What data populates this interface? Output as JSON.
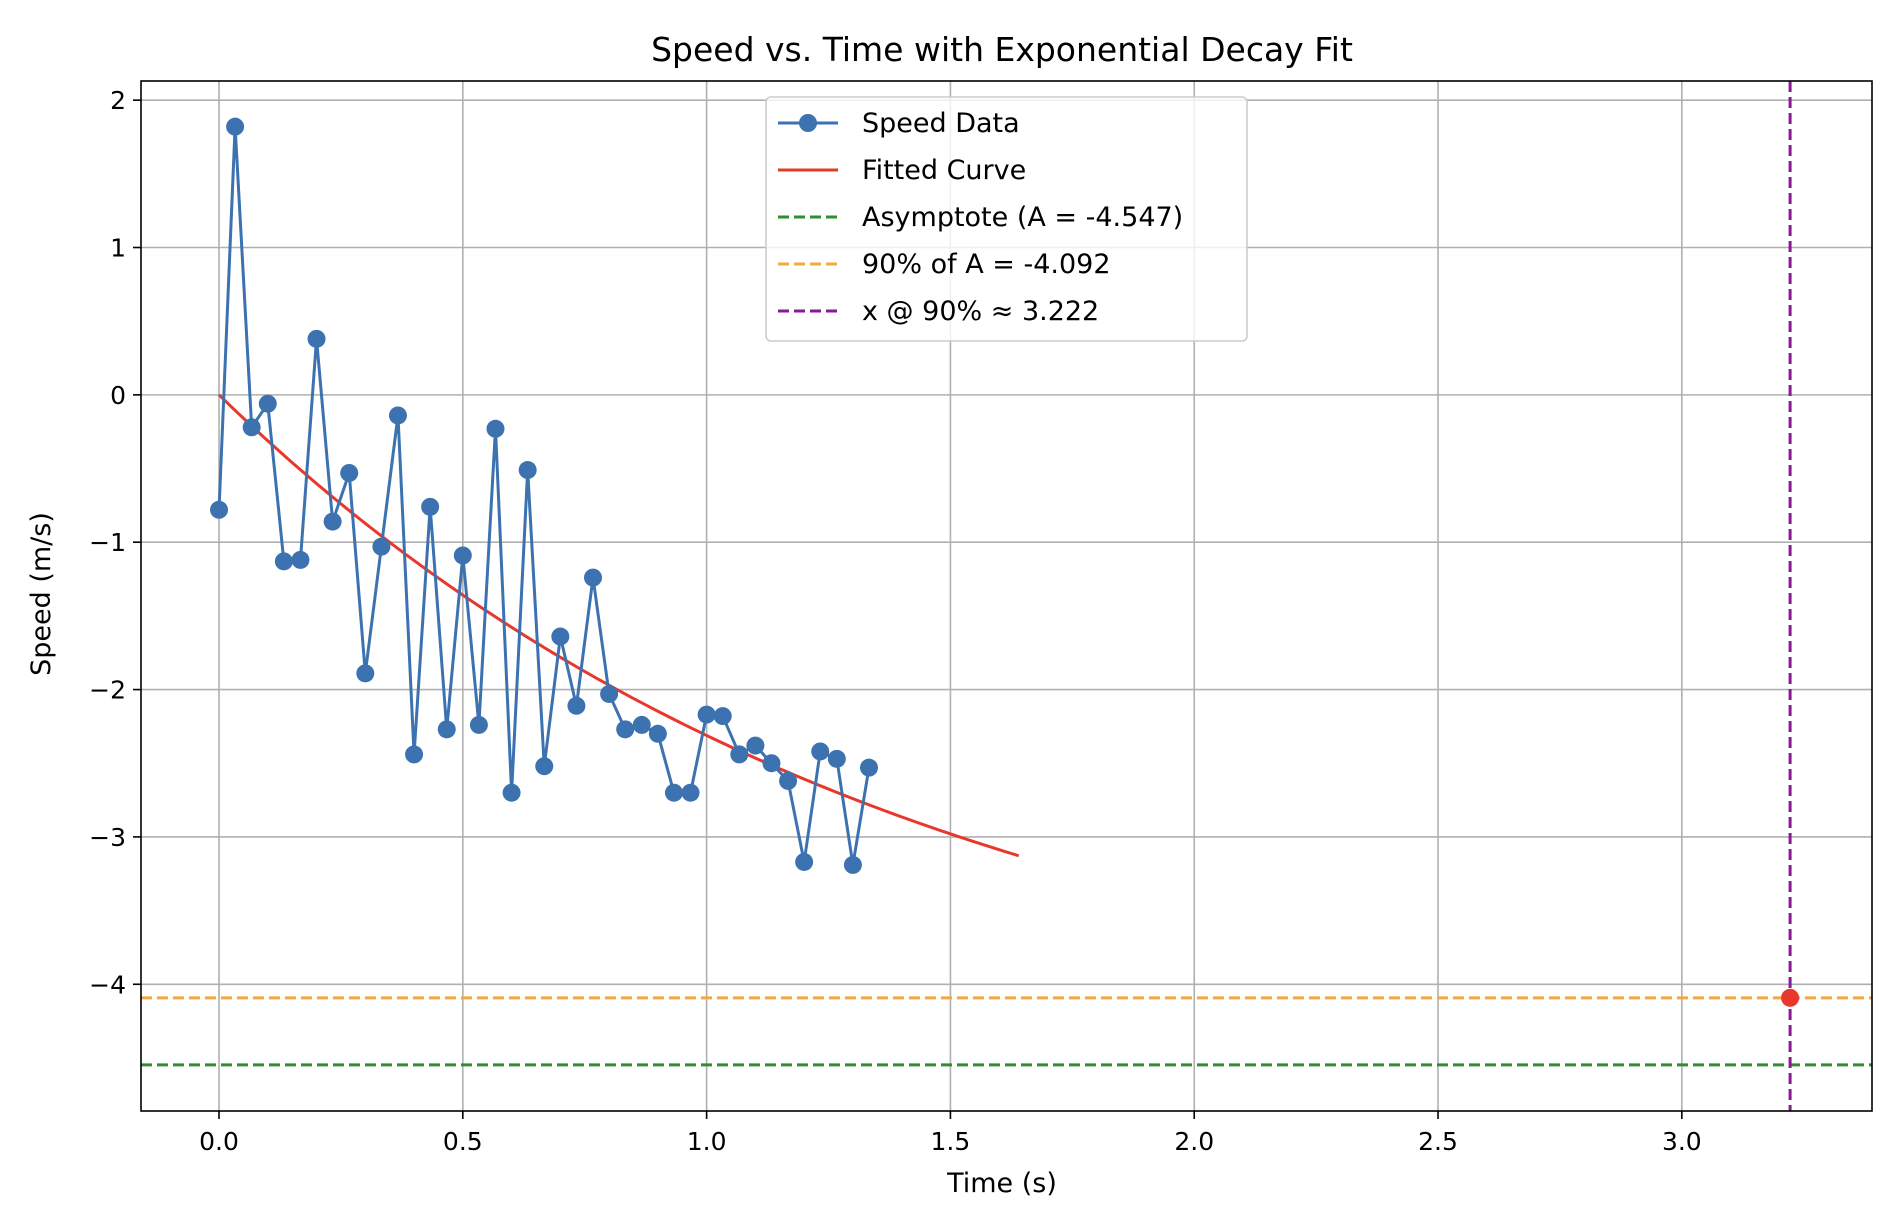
{
  "chart_data": {
    "type": "line",
    "title": "Speed vs. Time with Exponential Decay Fit",
    "xlabel": "Time (s)",
    "ylabel": "Speed (m/s)",
    "xlim": [
      -0.16,
      3.39
    ],
    "ylim": [
      -4.86,
      2.13
    ],
    "xticks": [
      0.0,
      0.5,
      1.0,
      1.5,
      2.0,
      2.5,
      3.0
    ],
    "xtick_labels": [
      "0.0",
      "0.5",
      "1.0",
      "1.5",
      "2.0",
      "2.5",
      "3.0"
    ],
    "yticks": [
      2,
      1,
      0,
      -1,
      -2,
      -3,
      -4
    ],
    "ytick_labels": [
      "2",
      "1",
      "0",
      "−1",
      "−2",
      "−3",
      "−4"
    ],
    "grid": true,
    "legend_position": "top-center",
    "series": [
      {
        "name": "Speed Data",
        "kind": "line-markers",
        "color": "#3d72b0",
        "x": [
          0.0,
          0.033,
          0.067,
          0.1,
          0.133,
          0.167,
          0.2,
          0.233,
          0.267,
          0.3,
          0.333,
          0.367,
          0.4,
          0.433,
          0.467,
          0.5,
          0.533,
          0.567,
          0.6,
          0.633,
          0.667,
          0.7,
          0.733,
          0.767,
          0.8,
          0.833,
          0.867,
          0.9,
          0.933,
          0.967,
          1.0,
          1.033,
          1.067,
          1.1,
          1.133,
          1.167,
          1.2,
          1.233,
          1.267,
          1.3,
          1.333
        ],
        "y": [
          -0.78,
          1.82,
          -0.22,
          -0.06,
          -1.13,
          -1.12,
          0.38,
          -0.86,
          -0.53,
          -1.89,
          -1.03,
          -0.14,
          -2.44,
          -0.76,
          -2.27,
          -1.09,
          -2.24,
          -0.23,
          -2.7,
          -0.51,
          -2.52,
          -1.64,
          -2.11,
          -1.24,
          -2.03,
          -2.27,
          -2.24,
          -2.3,
          -2.7,
          -2.7,
          -2.17,
          -2.18,
          -2.44,
          -2.38,
          -2.5,
          -2.62,
          -3.17,
          -2.42,
          -2.47,
          -3.19,
          -2.53
        ]
      },
      {
        "name": "Fitted Curve",
        "kind": "line",
        "color": "#e8382b",
        "model": {
          "A": -4.547,
          "k": 0.71,
          "x_min": 0.0,
          "x_max": 1.64
        }
      },
      {
        "name": "Asymptote (A = -4.547)",
        "kind": "hline-dashed",
        "color": "#2f8f2f",
        "y": -4.547
      },
      {
        "name": "90% of A = -4.092",
        "kind": "hline-dashed",
        "color": "#f5a93a",
        "y": -4.092
      },
      {
        "name": "x @ 90% ≈ 3.222",
        "kind": "vline-dashed",
        "color": "#8a1a93",
        "x": 3.222
      }
    ],
    "highlight_point": {
      "x": 3.222,
      "y": -4.092,
      "color": "#e8382b"
    }
  }
}
